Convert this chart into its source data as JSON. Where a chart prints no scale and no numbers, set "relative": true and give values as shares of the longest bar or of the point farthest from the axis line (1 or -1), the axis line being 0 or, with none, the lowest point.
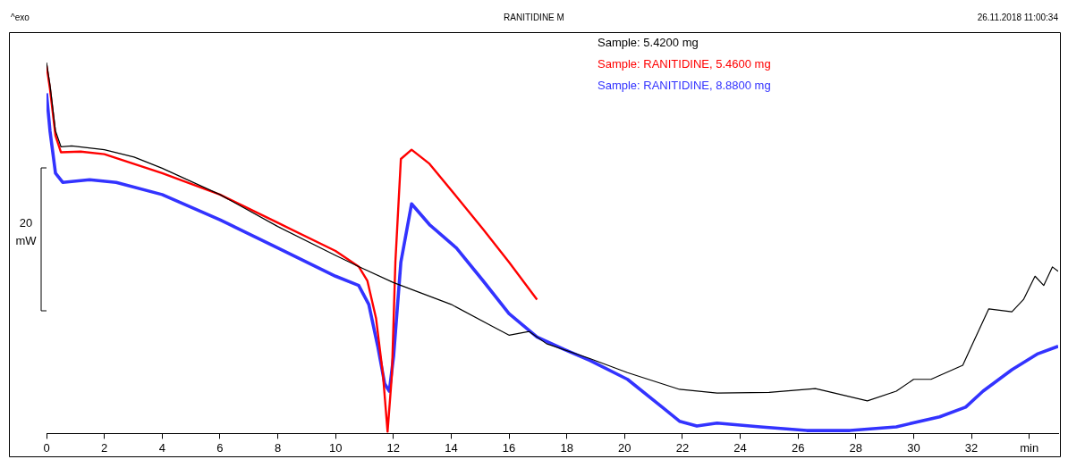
{
  "chart_data": {
    "type": "line",
    "title": "RANITIDINE M",
    "relative": true,
    "legend": "top right",
    "grid": false,
    "marker": "none",
    "line_style": "solid",
    "annotations": [
      "^exo",
      "26.11.2018 11:00:34",
      "20 mW"
    ],
    "xlim": [
      0,
      35
    ],
    "xticks": [
      0,
      2,
      4,
      6,
      8,
      10,
      12,
      14,
      16,
      18,
      20,
      22,
      24,
      26,
      28,
      30,
      32,
      {
        "value": 34,
        "label": "min"
      }
    ],
    "series": [
      {
        "name": "Sample: 5.4200 mg",
        "color": "#000000",
        "x": [
          0,
          0.12,
          0.31,
          0.5,
          0.87,
          2,
          3.03,
          4,
          6,
          8,
          10,
          10.8,
          12,
          14,
          15.4,
          16,
          16.7,
          17.3,
          18.8,
          20.1,
          21.9,
          23.2,
          25,
          26.6,
          27,
          28.4,
          29.4,
          30,
          30.6,
          31.7,
          32,
          32.6,
          33.4,
          33.8,
          34.2,
          34.5,
          34.8,
          35
        ],
        "values": [
          1.0,
          0.94,
          0.816,
          0.773,
          0.775,
          0.765,
          0.745,
          0.715,
          0.644,
          0.558,
          0.48,
          0.45,
          0.407,
          0.348,
          0.29,
          0.265,
          0.275,
          0.242,
          0.202,
          0.164,
          0.119,
          0.109,
          0.111,
          0.121,
          0.114,
          0.088,
          0.114,
          0.146,
          0.146,
          0.184,
          0.235,
          0.336,
          0.328,
          0.361,
          0.424,
          0.399,
          0.449,
          0.437
        ]
      },
      {
        "name": "Sample: RANITIDINE, 5.4600 mg",
        "color": "#ff0000",
        "x": [
          0,
          0.12,
          0.31,
          0.5,
          1.18,
          2,
          4,
          6,
          8,
          10,
          10.8,
          11.1,
          11.4,
          11.64,
          11.8,
          11.95,
          12.07,
          12.26,
          12.63,
          13.25,
          14.18,
          15.1,
          16,
          16.97
        ],
        "values": [
          0.992,
          0.929,
          0.803,
          0.758,
          0.76,
          0.753,
          0.702,
          0.644,
          0.568,
          0.492,
          0.45,
          0.412,
          0.311,
          0.159,
          0.005,
          0.159,
          0.462,
          0.74,
          0.765,
          0.727,
          0.639,
          0.551,
          0.462,
          0.361
        ]
      },
      {
        "name": "Sample: RANITIDINE, 8.8800 mg",
        "color": "#3333ff",
        "x": [
          0,
          0.12,
          0.31,
          0.56,
          1.49,
          2.41,
          4,
          6,
          8,
          10,
          10.8,
          11.15,
          11.46,
          11.7,
          11.86,
          12.01,
          12.26,
          12.63,
          13.25,
          14.18,
          15.1,
          16,
          16.97,
          17.9,
          18.8,
          20.1,
          21.3,
          21.9,
          22.5,
          23.2,
          24.7,
          26.3,
          27.8,
          29.4,
          30.9,
          31.8,
          32.4,
          33.4,
          34.3,
          35
        ],
        "values": [
          0.917,
          0.816,
          0.702,
          0.677,
          0.684,
          0.677,
          0.644,
          0.576,
          0.5,
          0.424,
          0.399,
          0.348,
          0.235,
          0.134,
          0.114,
          0.21,
          0.462,
          0.619,
          0.563,
          0.5,
          0.412,
          0.323,
          0.26,
          0.227,
          0.197,
          0.146,
          0.071,
          0.033,
          0.02,
          0.028,
          0.018,
          0.008,
          0.008,
          0.018,
          0.045,
          0.071,
          0.114,
          0.172,
          0.215,
          0.235
        ]
      }
    ]
  }
}
